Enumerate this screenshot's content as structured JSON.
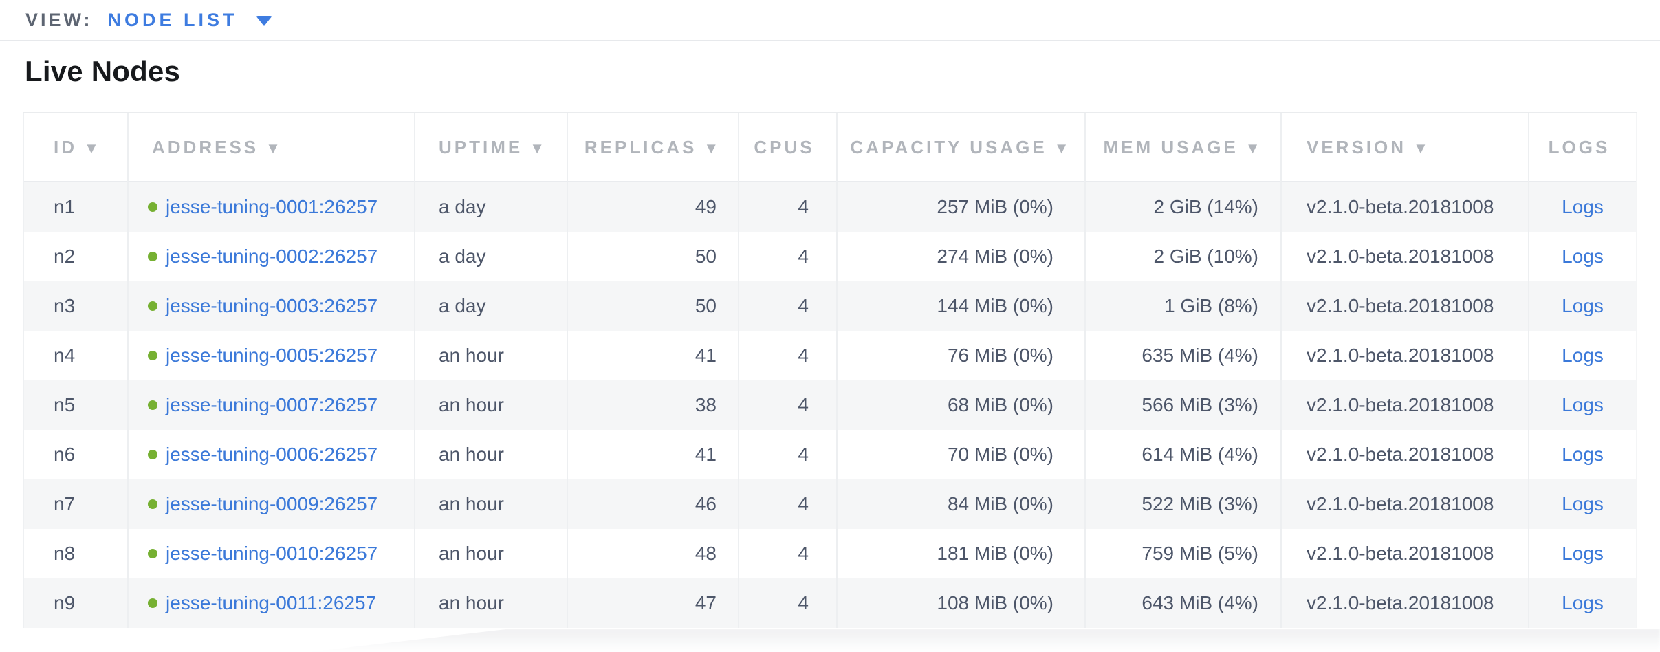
{
  "view_bar": {
    "label": "VIEW:",
    "selected": "NODE LIST"
  },
  "page": {
    "title": "Live Nodes"
  },
  "table": {
    "logs_label": "Logs",
    "columns": [
      {
        "label": "ID",
        "arrow": "▼",
        "sortable": true
      },
      {
        "label": "ADDRESS",
        "arrow": "▼",
        "sortable": true
      },
      {
        "label": "UPTIME",
        "arrow": "▼",
        "sortable": true
      },
      {
        "label": "REPLICAS",
        "arrow": "▼",
        "sortable": true
      },
      {
        "label": "CPUS",
        "arrow": "",
        "sortable": false
      },
      {
        "label": "CAPACITY USAGE",
        "arrow": "▼",
        "sortable": true
      },
      {
        "label": "MEM USAGE",
        "arrow": "▼",
        "sortable": true
      },
      {
        "label": "VERSION",
        "arrow": "▼",
        "sortable": true
      },
      {
        "label": "LOGS",
        "arrow": "",
        "sortable": false
      }
    ],
    "rows": [
      {
        "id": "n1",
        "address": "jesse-tuning-0001:26257",
        "uptime": "a day",
        "replicas": "49",
        "cpus": "4",
        "capacity": "257 MiB (0%)",
        "mem": "2 GiB (14%)",
        "version": "v2.1.0-beta.20181008"
      },
      {
        "id": "n2",
        "address": "jesse-tuning-0002:26257",
        "uptime": "a day",
        "replicas": "50",
        "cpus": "4",
        "capacity": "274 MiB (0%)",
        "mem": "2 GiB (10%)",
        "version": "v2.1.0-beta.20181008"
      },
      {
        "id": "n3",
        "address": "jesse-tuning-0003:26257",
        "uptime": "a day",
        "replicas": "50",
        "cpus": "4",
        "capacity": "144 MiB (0%)",
        "mem": "1 GiB (8%)",
        "version": "v2.1.0-beta.20181008"
      },
      {
        "id": "n4",
        "address": "jesse-tuning-0005:26257",
        "uptime": "an hour",
        "replicas": "41",
        "cpus": "4",
        "capacity": "76 MiB (0%)",
        "mem": "635 MiB (4%)",
        "version": "v2.1.0-beta.20181008"
      },
      {
        "id": "n5",
        "address": "jesse-tuning-0007:26257",
        "uptime": "an hour",
        "replicas": "38",
        "cpus": "4",
        "capacity": "68 MiB (0%)",
        "mem": "566 MiB (3%)",
        "version": "v2.1.0-beta.20181008"
      },
      {
        "id": "n6",
        "address": "jesse-tuning-0006:26257",
        "uptime": "an hour",
        "replicas": "41",
        "cpus": "4",
        "capacity": "70 MiB (0%)",
        "mem": "614 MiB (4%)",
        "version": "v2.1.0-beta.20181008"
      },
      {
        "id": "n7",
        "address": "jesse-tuning-0009:26257",
        "uptime": "an hour",
        "replicas": "46",
        "cpus": "4",
        "capacity": "84 MiB (0%)",
        "mem": "522 MiB (3%)",
        "version": "v2.1.0-beta.20181008"
      },
      {
        "id": "n8",
        "address": "jesse-tuning-0010:26257",
        "uptime": "an hour",
        "replicas": "48",
        "cpus": "4",
        "capacity": "181 MiB (0%)",
        "mem": "759 MiB (5%)",
        "version": "v2.1.0-beta.20181008"
      },
      {
        "id": "n9",
        "address": "jesse-tuning-0011:26257",
        "uptime": "an hour",
        "replicas": "47",
        "cpus": "4",
        "capacity": "108 MiB (0%)",
        "mem": "643 MiB (4%)",
        "version": "v2.1.0-beta.20181008"
      }
    ]
  },
  "colors": {
    "link_blue": "#3b79d9",
    "accent_blue": "#3e7ce0",
    "status_live_green": "#76b032",
    "header_gray": "#b1b5bb",
    "body_text": "#4d5669",
    "row_alt_background": "#f5f6f7",
    "divider": "#e7e9ec"
  }
}
